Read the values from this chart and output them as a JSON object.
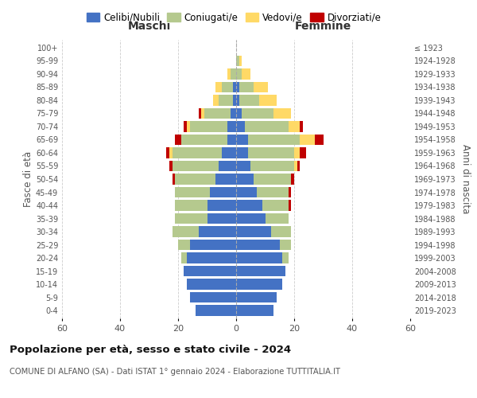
{
  "age_groups": [
    "0-4",
    "5-9",
    "10-14",
    "15-19",
    "20-24",
    "25-29",
    "30-34",
    "35-39",
    "40-44",
    "45-49",
    "50-54",
    "55-59",
    "60-64",
    "65-69",
    "70-74",
    "75-79",
    "80-84",
    "85-89",
    "90-94",
    "95-99",
    "100+"
  ],
  "birth_years": [
    "2019-2023",
    "2014-2018",
    "2009-2013",
    "2004-2008",
    "1999-2003",
    "1994-1998",
    "1989-1993",
    "1984-1988",
    "1979-1983",
    "1974-1978",
    "1969-1973",
    "1964-1968",
    "1959-1963",
    "1954-1958",
    "1949-1953",
    "1944-1948",
    "1939-1943",
    "1934-1938",
    "1929-1933",
    "1924-1928",
    "≤ 1923"
  ],
  "males": {
    "celibi": [
      14,
      16,
      17,
      18,
      17,
      16,
      13,
      10,
      10,
      9,
      7,
      6,
      5,
      3,
      3,
      2,
      1,
      1,
      0,
      0,
      0
    ],
    "coniugati": [
      0,
      0,
      0,
      0,
      2,
      4,
      9,
      11,
      11,
      12,
      14,
      16,
      17,
      16,
      13,
      9,
      5,
      4,
      2,
      0,
      0
    ],
    "vedovi": [
      0,
      0,
      0,
      0,
      0,
      0,
      0,
      0,
      0,
      0,
      0,
      0,
      1,
      0,
      1,
      1,
      2,
      2,
      1,
      0,
      0
    ],
    "divorziati": [
      0,
      0,
      0,
      0,
      0,
      0,
      0,
      0,
      0,
      0,
      1,
      1,
      1,
      2,
      1,
      1,
      0,
      0,
      0,
      0,
      0
    ]
  },
  "females": {
    "nubili": [
      13,
      14,
      16,
      17,
      16,
      15,
      12,
      10,
      9,
      7,
      6,
      5,
      4,
      4,
      3,
      2,
      1,
      1,
      0,
      0,
      0
    ],
    "coniugate": [
      0,
      0,
      0,
      0,
      2,
      4,
      7,
      8,
      9,
      11,
      13,
      15,
      16,
      18,
      15,
      11,
      7,
      5,
      2,
      1,
      0
    ],
    "vedove": [
      0,
      0,
      0,
      0,
      0,
      0,
      0,
      0,
      0,
      0,
      0,
      1,
      2,
      5,
      4,
      6,
      6,
      5,
      3,
      1,
      0
    ],
    "divorziate": [
      0,
      0,
      0,
      0,
      0,
      0,
      0,
      0,
      1,
      1,
      1,
      1,
      2,
      3,
      1,
      0,
      0,
      0,
      0,
      0,
      0
    ]
  },
  "colors": {
    "celibi_nubili": "#4472C4",
    "coniugati": "#B5C98E",
    "vedovi": "#FFD966",
    "divorziati": "#C00000"
  },
  "xlim": 60,
  "title": "Popolazione per età, sesso e stato civile - 2024",
  "subtitle": "COMUNE DI ALFANO (SA) - Dati ISTAT 1° gennaio 2024 - Elaborazione TUTTITALIA.IT",
  "ylabel_left": "Fasce di età",
  "ylabel_right": "Anni di nascita",
  "xlabel_left": "Maschi",
  "xlabel_right": "Femmine",
  "bg_color": "#ffffff",
  "grid_color": "#cccccc"
}
